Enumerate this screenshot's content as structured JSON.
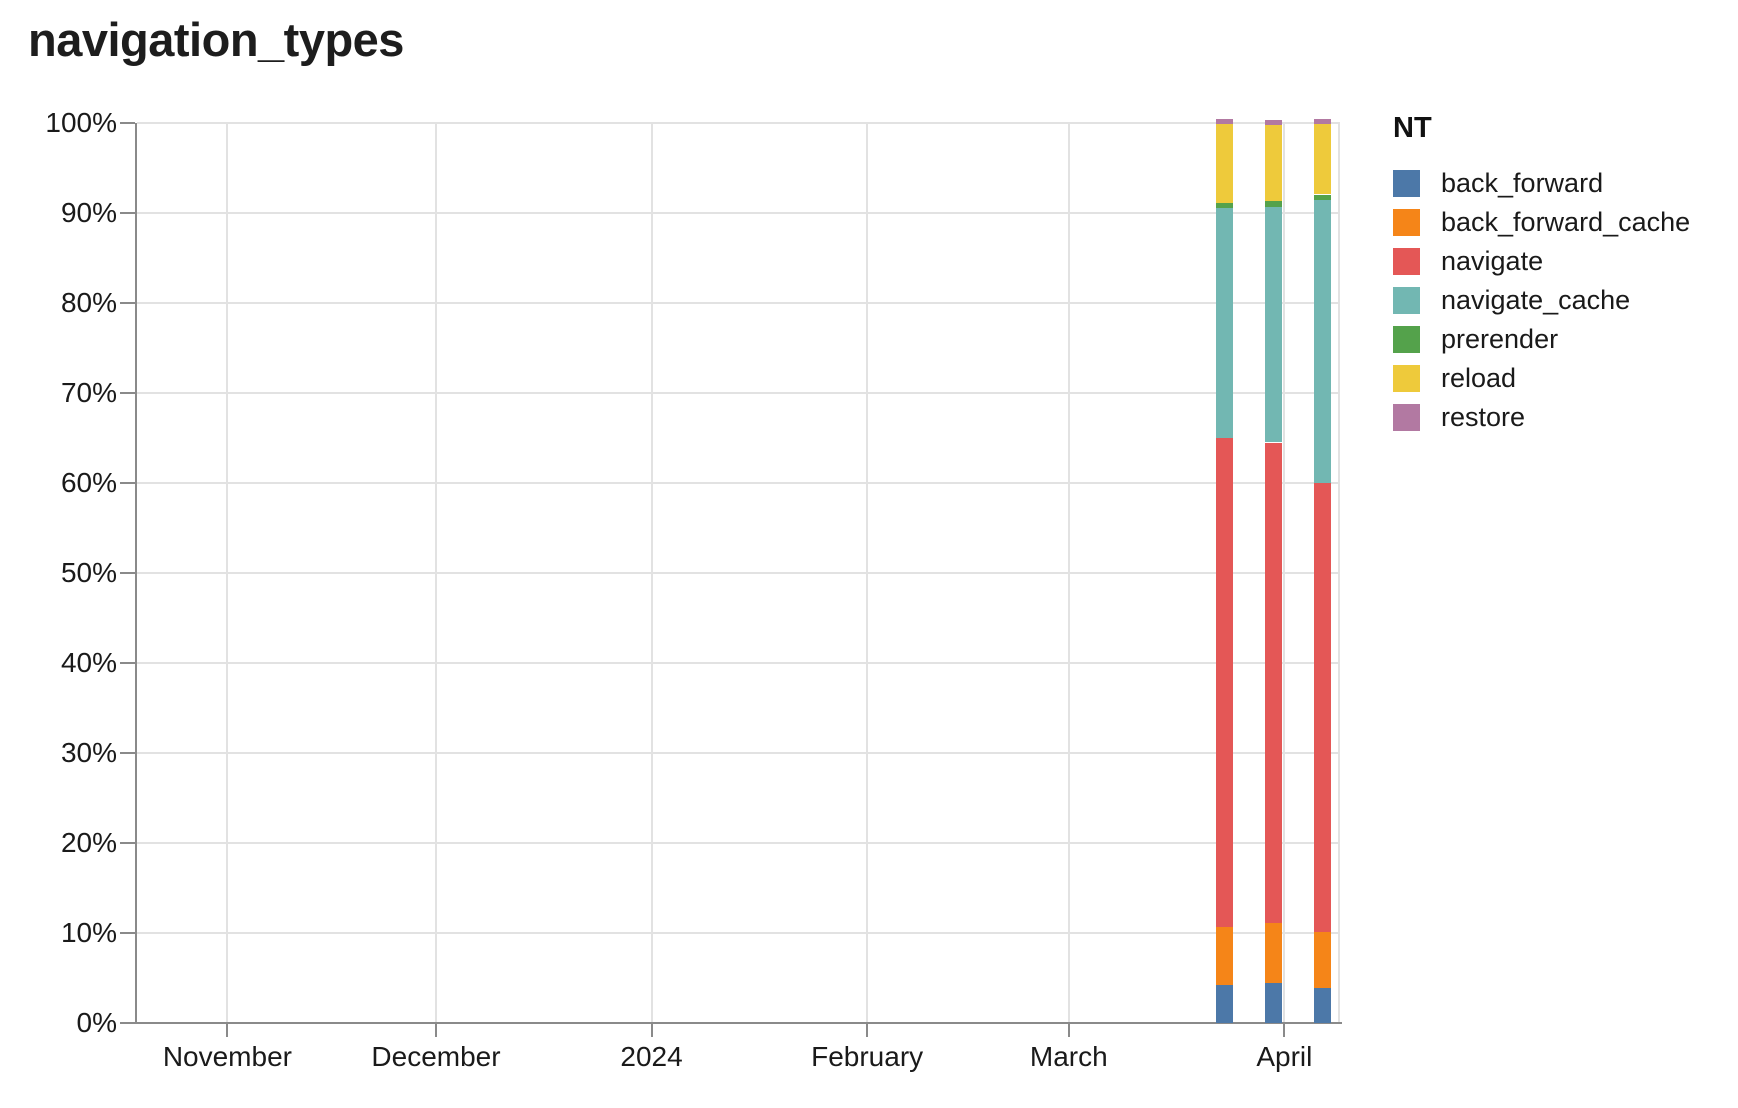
{
  "title": "navigation_types",
  "legend": {
    "title": "NT",
    "items": [
      {
        "label": "back_forward",
        "color": "#4c78a8"
      },
      {
        "label": "back_forward_cache",
        "color": "#f58518"
      },
      {
        "label": "navigate",
        "color": "#e45756"
      },
      {
        "label": "navigate_cache",
        "color": "#72b7b2"
      },
      {
        "label": "prerender",
        "color": "#54a24b"
      },
      {
        "label": "reload",
        "color": "#eeca3b"
      },
      {
        "label": "restore",
        "color": "#b279a2"
      }
    ]
  },
  "chart_data": {
    "type": "bar",
    "stacked": true,
    "normalized": true,
    "title": "navigation_types",
    "grid": true,
    "legend_position": "right",
    "legend_title": "NT",
    "ylim": [
      0,
      100
    ],
    "y_axis": {
      "ticks": [
        0,
        10,
        20,
        30,
        40,
        50,
        60,
        70,
        80,
        90,
        100
      ],
      "suffix": "%"
    },
    "x_domain": [
      "2023-10-19",
      "2024-04-09"
    ],
    "x_axis": {
      "ticks": [
        {
          "date": "2023-11-01",
          "label": "November"
        },
        {
          "date": "2023-12-01",
          "label": "December"
        },
        {
          "date": "2024-01-01",
          "label": "2024"
        },
        {
          "date": "2024-02-01",
          "label": "February"
        },
        {
          "date": "2024-03-01",
          "label": "March"
        },
        {
          "date": "2024-04-01",
          "label": "April"
        }
      ]
    },
    "x": [
      "2024-03-24",
      "2024-03-31",
      "2024-04-07"
    ],
    "series": [
      {
        "name": "back_forward",
        "color": "#4c78a8",
        "values": [
          4.2,
          4.4,
          3.9
        ]
      },
      {
        "name": "back_forward_cache",
        "color": "#f58518",
        "values": [
          6.5,
          6.7,
          6.2
        ]
      },
      {
        "name": "navigate",
        "color": "#e45756",
        "values": [
          54.3,
          53.4,
          49.9
        ]
      },
      {
        "name": "navigate_cache",
        "color": "#72b7b2",
        "values": [
          25.6,
          26.2,
          31.5
        ]
      },
      {
        "name": "prerender",
        "color": "#54a24b",
        "values": [
          0.5,
          0.6,
          0.5
        ]
      },
      {
        "name": "reload",
        "color": "#eeca3b",
        "values": [
          8.7,
          8.5,
          7.8
        ]
      },
      {
        "name": "restore",
        "color": "#b279a2",
        "values": [
          0.2,
          0.2,
          0.2
        ]
      }
    ]
  }
}
